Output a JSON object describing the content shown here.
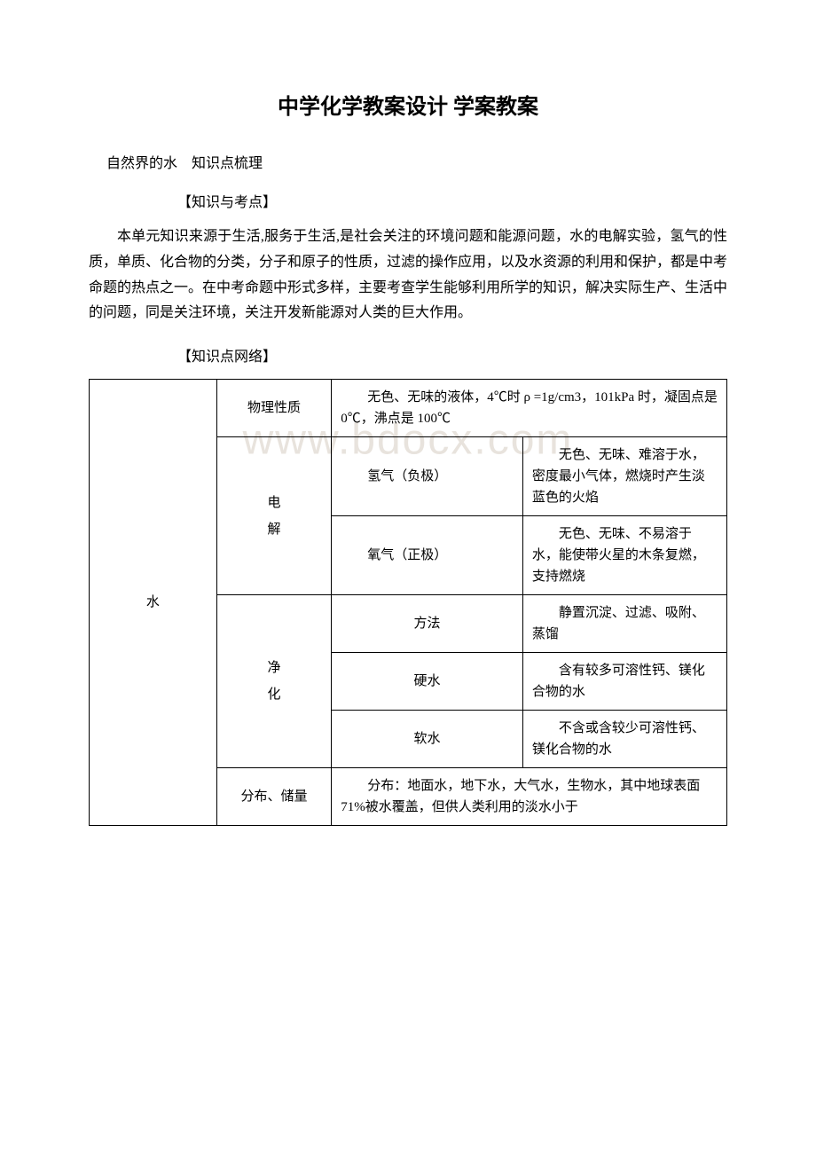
{
  "title": "中学化学教案设计 学案教案",
  "subtitle": "自然界的水　知识点梳理",
  "section1_label": "【知识与考点】",
  "paragraph1": "本单元知识来源于生活,服务于生活,是社会关注的环境问题和能源问题，水的电解实验，氢气的性质，单质、化合物的分类，分子和原子的性质，过滤的操作应用，以及水资源的利用和保护，都是中考命题的热点之一。在中考命题中形式多样，主要考查学生能够利用所学的知识，解决实际生产、生活中的问题，同是关注环境，关注开发新能源对人类的巨大作用。",
  "section2_label": "【知识点网络】",
  "watermark_text": "www.bdocx.com",
  "table": {
    "row_header": "水",
    "rows": [
      {
        "cat": "物理性质",
        "merged_content": "　　无色、无味的液体，4℃时 ρ =1g/cm3，101kPa 时，凝固点是 0℃，沸点是 100℃"
      },
      {
        "cat_line1": "电",
        "cat_line2": "解",
        "sub1_label": "　　氢气（负极）",
        "sub1_desc": "　　无色、无味、难溶于水，密度最小气体，燃烧时产生淡蓝色的火焰",
        "sub2_label": "　　氧气（正极）",
        "sub2_desc": "　　无色、无味、不易溶于水，能使带火星的木条复燃，支持燃烧"
      },
      {
        "cat_line1": "净",
        "cat_line2": "化",
        "sub1_label": "方法",
        "sub1_desc": "　　静置沉淀、过滤、吸附、蒸馏",
        "sub2_label": "硬水",
        "sub2_desc": "　　含有较多可溶性钙、镁化合物的水",
        "sub3_label": "软水",
        "sub3_desc": "　　不含或含较少可溶性钙、镁化合物的水"
      },
      {
        "cat": "分布、储量",
        "merged_content": "　　分布：地面水，地下水，大气水，生物水，其中地球表面 71%被水覆盖，但供人类利用的淡水小于"
      }
    ]
  }
}
